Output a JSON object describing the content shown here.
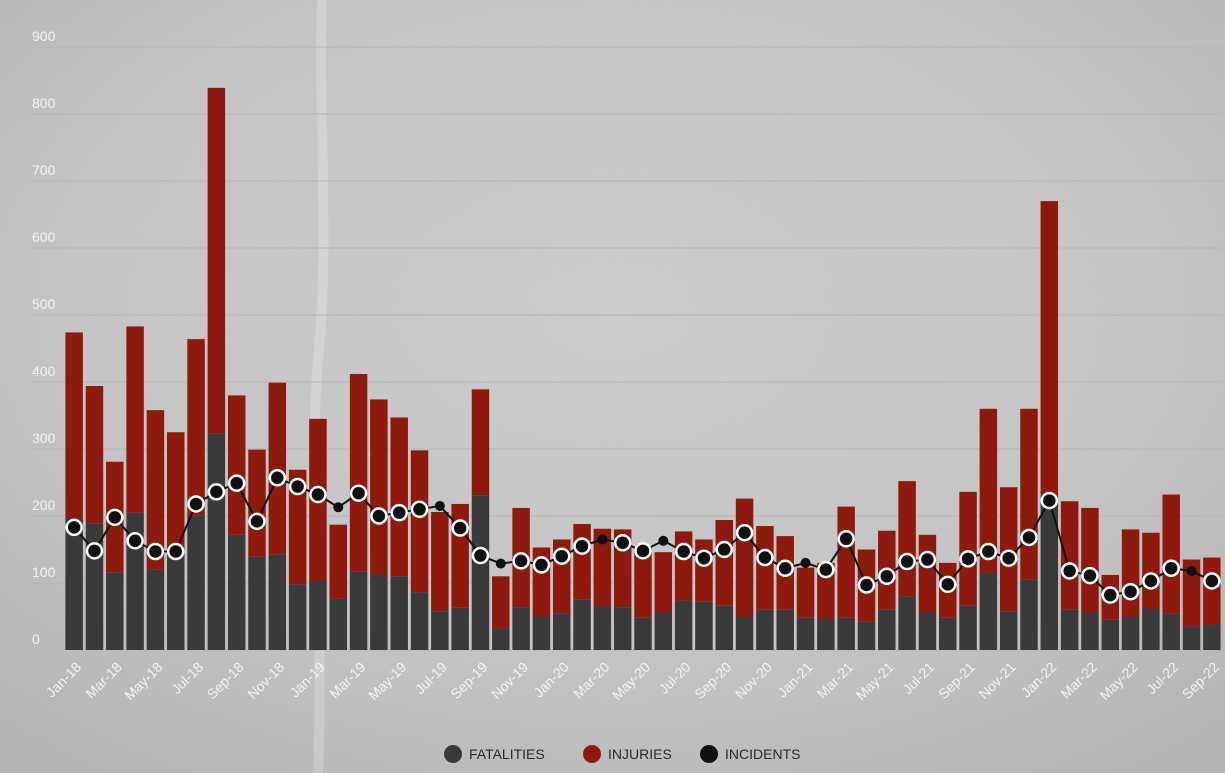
{
  "chart_data": {
    "type": "bar",
    "stacked": true,
    "ylim": [
      0,
      900
    ],
    "yticks": [
      0,
      100,
      200,
      300,
      400,
      500,
      600,
      700,
      800,
      900
    ],
    "grid": true,
    "legend_position": "bottom-center",
    "categories": [
      "Jan-18",
      "Feb-18",
      "Mar-18",
      "Apr-18",
      "May-18",
      "Jun-18",
      "Jul-18",
      "Aug-18",
      "Sep-18",
      "Oct-18",
      "Nov-18",
      "Dec-18",
      "Jan-19",
      "Feb-19",
      "Mar-19",
      "Apr-19",
      "May-19",
      "Jun-19",
      "Jul-19",
      "Aug-19",
      "Sep-19",
      "Oct-19",
      "Nov-19",
      "Dec-19",
      "Jan-20",
      "Feb-20",
      "Mar-20",
      "Apr-20",
      "May-20",
      "Jun-20",
      "Jul-20",
      "Aug-20",
      "Sep-20",
      "Oct-20",
      "Nov-20",
      "Dec-20",
      "Jan-21",
      "Feb-21",
      "Mar-21",
      "Apr-21",
      "May-21",
      "Jun-21",
      "Jul-21",
      "Aug-21",
      "Sep-21",
      "Oct-21",
      "Nov-21",
      "Dec-21",
      "Jan-22",
      "Feb-22",
      "Mar-22",
      "Apr-22",
      "May-22",
      "Jun-22",
      "Jul-22",
      "Aug-22",
      "Sep-22"
    ],
    "x_tick_labels": [
      "Jan-18",
      "Mar-18",
      "May-18",
      "Jul-18",
      "Sep-18",
      "Nov-18",
      "Jan-19",
      "Mar-19",
      "May-19",
      "Jul-19",
      "Sep-19",
      "Nov-19",
      "Jan-20",
      "Mar-20",
      "May-20",
      "Jul-20",
      "Sep-20",
      "Nov-20",
      "Jan-21",
      "Mar-21",
      "May-21",
      "Jul-21",
      "Sep-21",
      "Nov-21",
      "Jan-22",
      "Mar-22",
      "May-22",
      "Jul-22",
      "Sep-22"
    ],
    "series": [
      {
        "name": "FATALITIES",
        "color": "#3a3a3a",
        "type": "bar",
        "values": [
          197,
          189,
          116,
          205,
          120,
          143,
          201,
          323,
          172,
          139,
          143,
          98,
          103,
          77,
          117,
          112,
          110,
          86,
          58,
          63,
          231,
          32,
          64,
          50,
          55,
          75,
          65,
          64,
          48,
          56,
          74,
          72,
          66,
          50,
          60,
          60,
          48,
          47,
          48,
          42,
          60,
          80,
          56,
          48,
          66,
          115,
          58,
          105,
          220,
          60,
          56,
          45,
          50,
          62,
          55,
          35,
          38
        ]
      },
      {
        "name": "INJURIES",
        "color": "#8e1a0e",
        "type": "bar",
        "values": [
          277,
          205,
          165,
          278,
          238,
          182,
          263,
          516,
          208,
          160,
          256,
          171,
          242,
          110,
          295,
          262,
          237,
          212,
          148,
          155,
          158,
          78,
          148,
          103,
          110,
          113,
          116,
          116,
          105,
          90,
          103,
          93,
          128,
          176,
          125,
          110,
          75,
          83,
          166,
          108,
          118,
          172,
          116,
          82,
          170,
          245,
          185,
          255,
          450,
          162,
          156,
          67,
          130,
          113,
          177,
          100,
          100
        ]
      },
      {
        "name": "INCIDENTS",
        "color": "#111111",
        "type": "line",
        "values": [
          183,
          148,
          198,
          163,
          147,
          147,
          218,
          236,
          249,
          192,
          257,
          244,
          232,
          213,
          234,
          200,
          205,
          210,
          215,
          182,
          141,
          129,
          133,
          127,
          140,
          155,
          165,
          160,
          148,
          163,
          147,
          137,
          150,
          175,
          138,
          122,
          130,
          120,
          166,
          97,
          110,
          132,
          135,
          98,
          136,
          147,
          137,
          168,
          223,
          118,
          111,
          82,
          87,
          103,
          122,
          118,
          103
        ],
        "highlighted_markers": [
          true,
          true,
          true,
          true,
          true,
          true,
          true,
          true,
          true,
          true,
          true,
          true,
          true,
          false,
          true,
          true,
          true,
          true,
          false,
          true,
          true,
          false,
          true,
          true,
          true,
          true,
          false,
          true,
          true,
          false,
          true,
          true,
          true,
          true,
          true,
          true,
          false,
          true,
          true,
          true,
          true,
          true,
          true,
          true,
          true,
          true,
          true,
          true,
          true,
          true,
          true,
          true,
          true,
          true,
          true,
          false,
          true
        ]
      }
    ]
  }
}
